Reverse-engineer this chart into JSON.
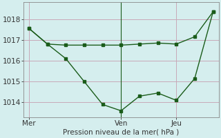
{
  "xlabel": "Pression niveau de la mer( hPa )",
  "background_color": "#d5eeee",
  "grid_color": "#c8a8b8",
  "line_color": "#1a5c1a",
  "line1_x": [
    0,
    1,
    2,
    3,
    4,
    5,
    6,
    7,
    8,
    9,
    10
  ],
  "line1_y": [
    1017.55,
    1016.8,
    1016.1,
    1015.0,
    1013.9,
    1013.6,
    1014.3,
    1014.45,
    1014.1,
    1015.15,
    1018.35
  ],
  "line2_x": [
    0,
    1,
    2,
    3,
    4,
    5,
    6,
    7,
    8,
    9,
    10
  ],
  "line2_y": [
    1017.55,
    1016.8,
    1016.75,
    1016.75,
    1016.75,
    1016.75,
    1016.8,
    1016.85,
    1016.8,
    1017.15,
    1018.35
  ],
  "xtick_positions": [
    0,
    5,
    8
  ],
  "xtick_labels": [
    "Mer",
    "Ven",
    "Jeu"
  ],
  "ylim": [
    1013.3,
    1018.8
  ],
  "yticks": [
    1014,
    1015,
    1016,
    1017,
    1018
  ],
  "xlim": [
    -0.3,
    10.3
  ],
  "vline_x": 5
}
